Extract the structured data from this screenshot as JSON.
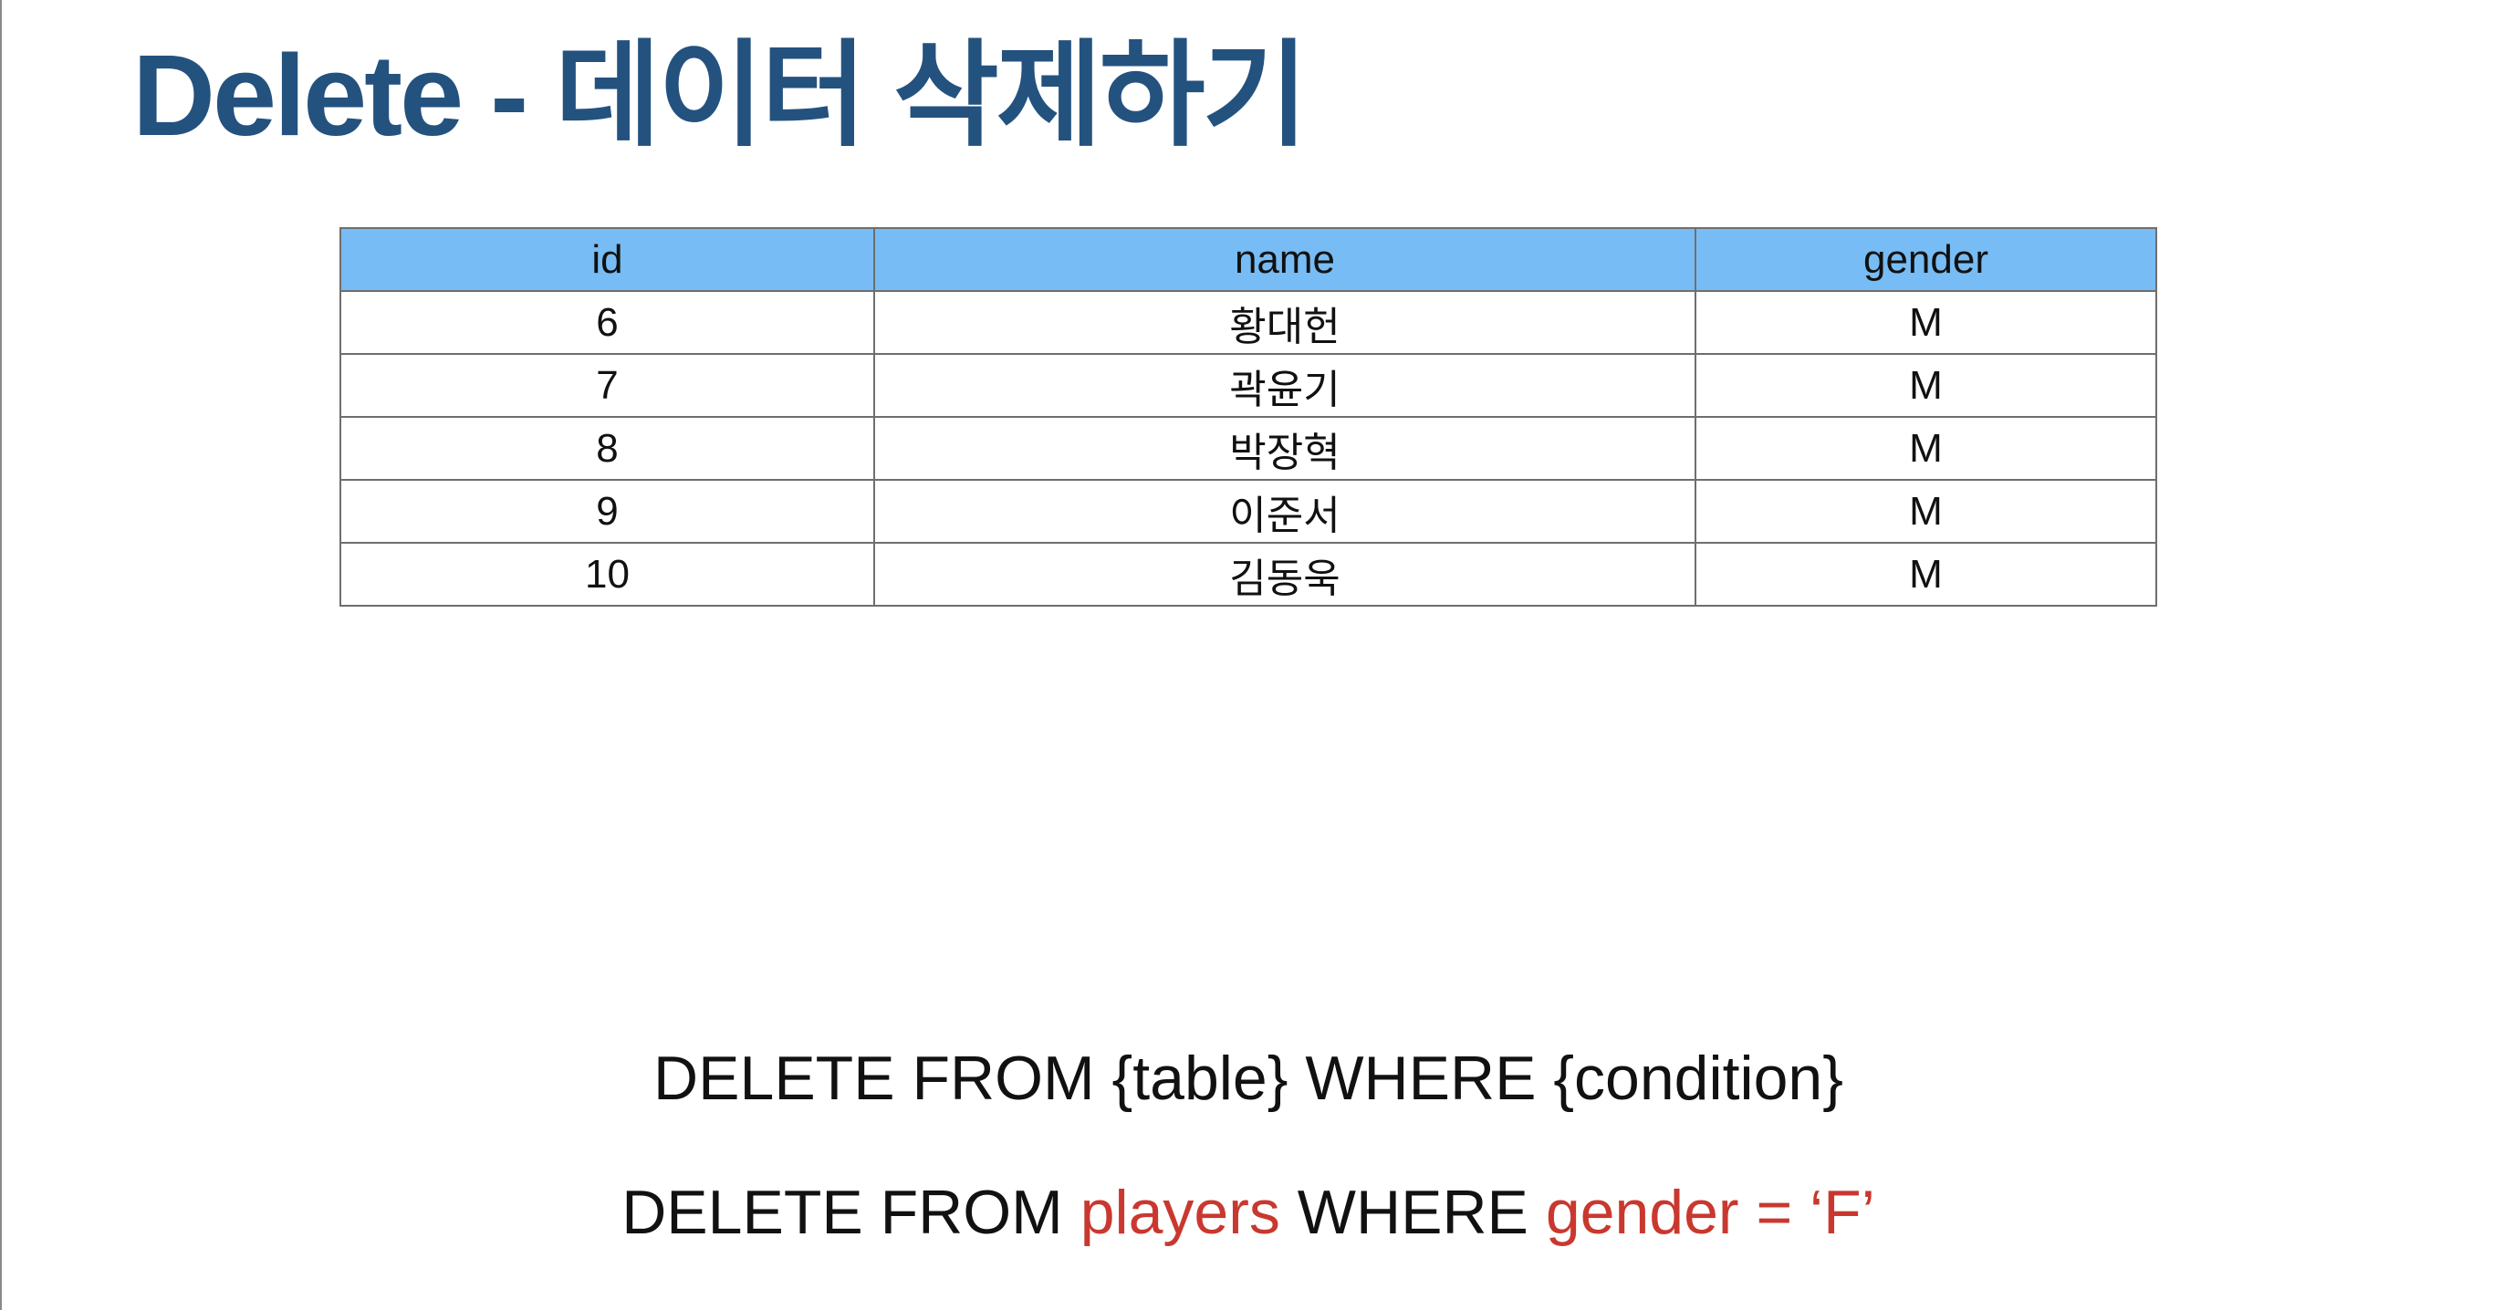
{
  "slide": {
    "title": "Delete - 데이터 삭제하기"
  },
  "table": {
    "headers": [
      "id",
      "name",
      "gender"
    ],
    "rows": [
      [
        "6",
        "황대헌",
        "M"
      ],
      [
        "7",
        "곽윤기",
        "M"
      ],
      [
        "8",
        "박장혁",
        "M"
      ],
      [
        "9",
        "이준서",
        "M"
      ],
      [
        "10",
        "김동욱",
        "M"
      ]
    ],
    "header_color": "#77bcf4"
  },
  "sql": {
    "generic": "DELETE FROM {table} WHERE {condition}",
    "example": {
      "part1": "DELETE FROM ",
      "table": "players",
      "part2": " WHERE ",
      "condition": "gender = ‘F’"
    },
    "highlight_color": "#c9382f"
  },
  "colors": {
    "title": "#24527f",
    "text": "#111111"
  }
}
